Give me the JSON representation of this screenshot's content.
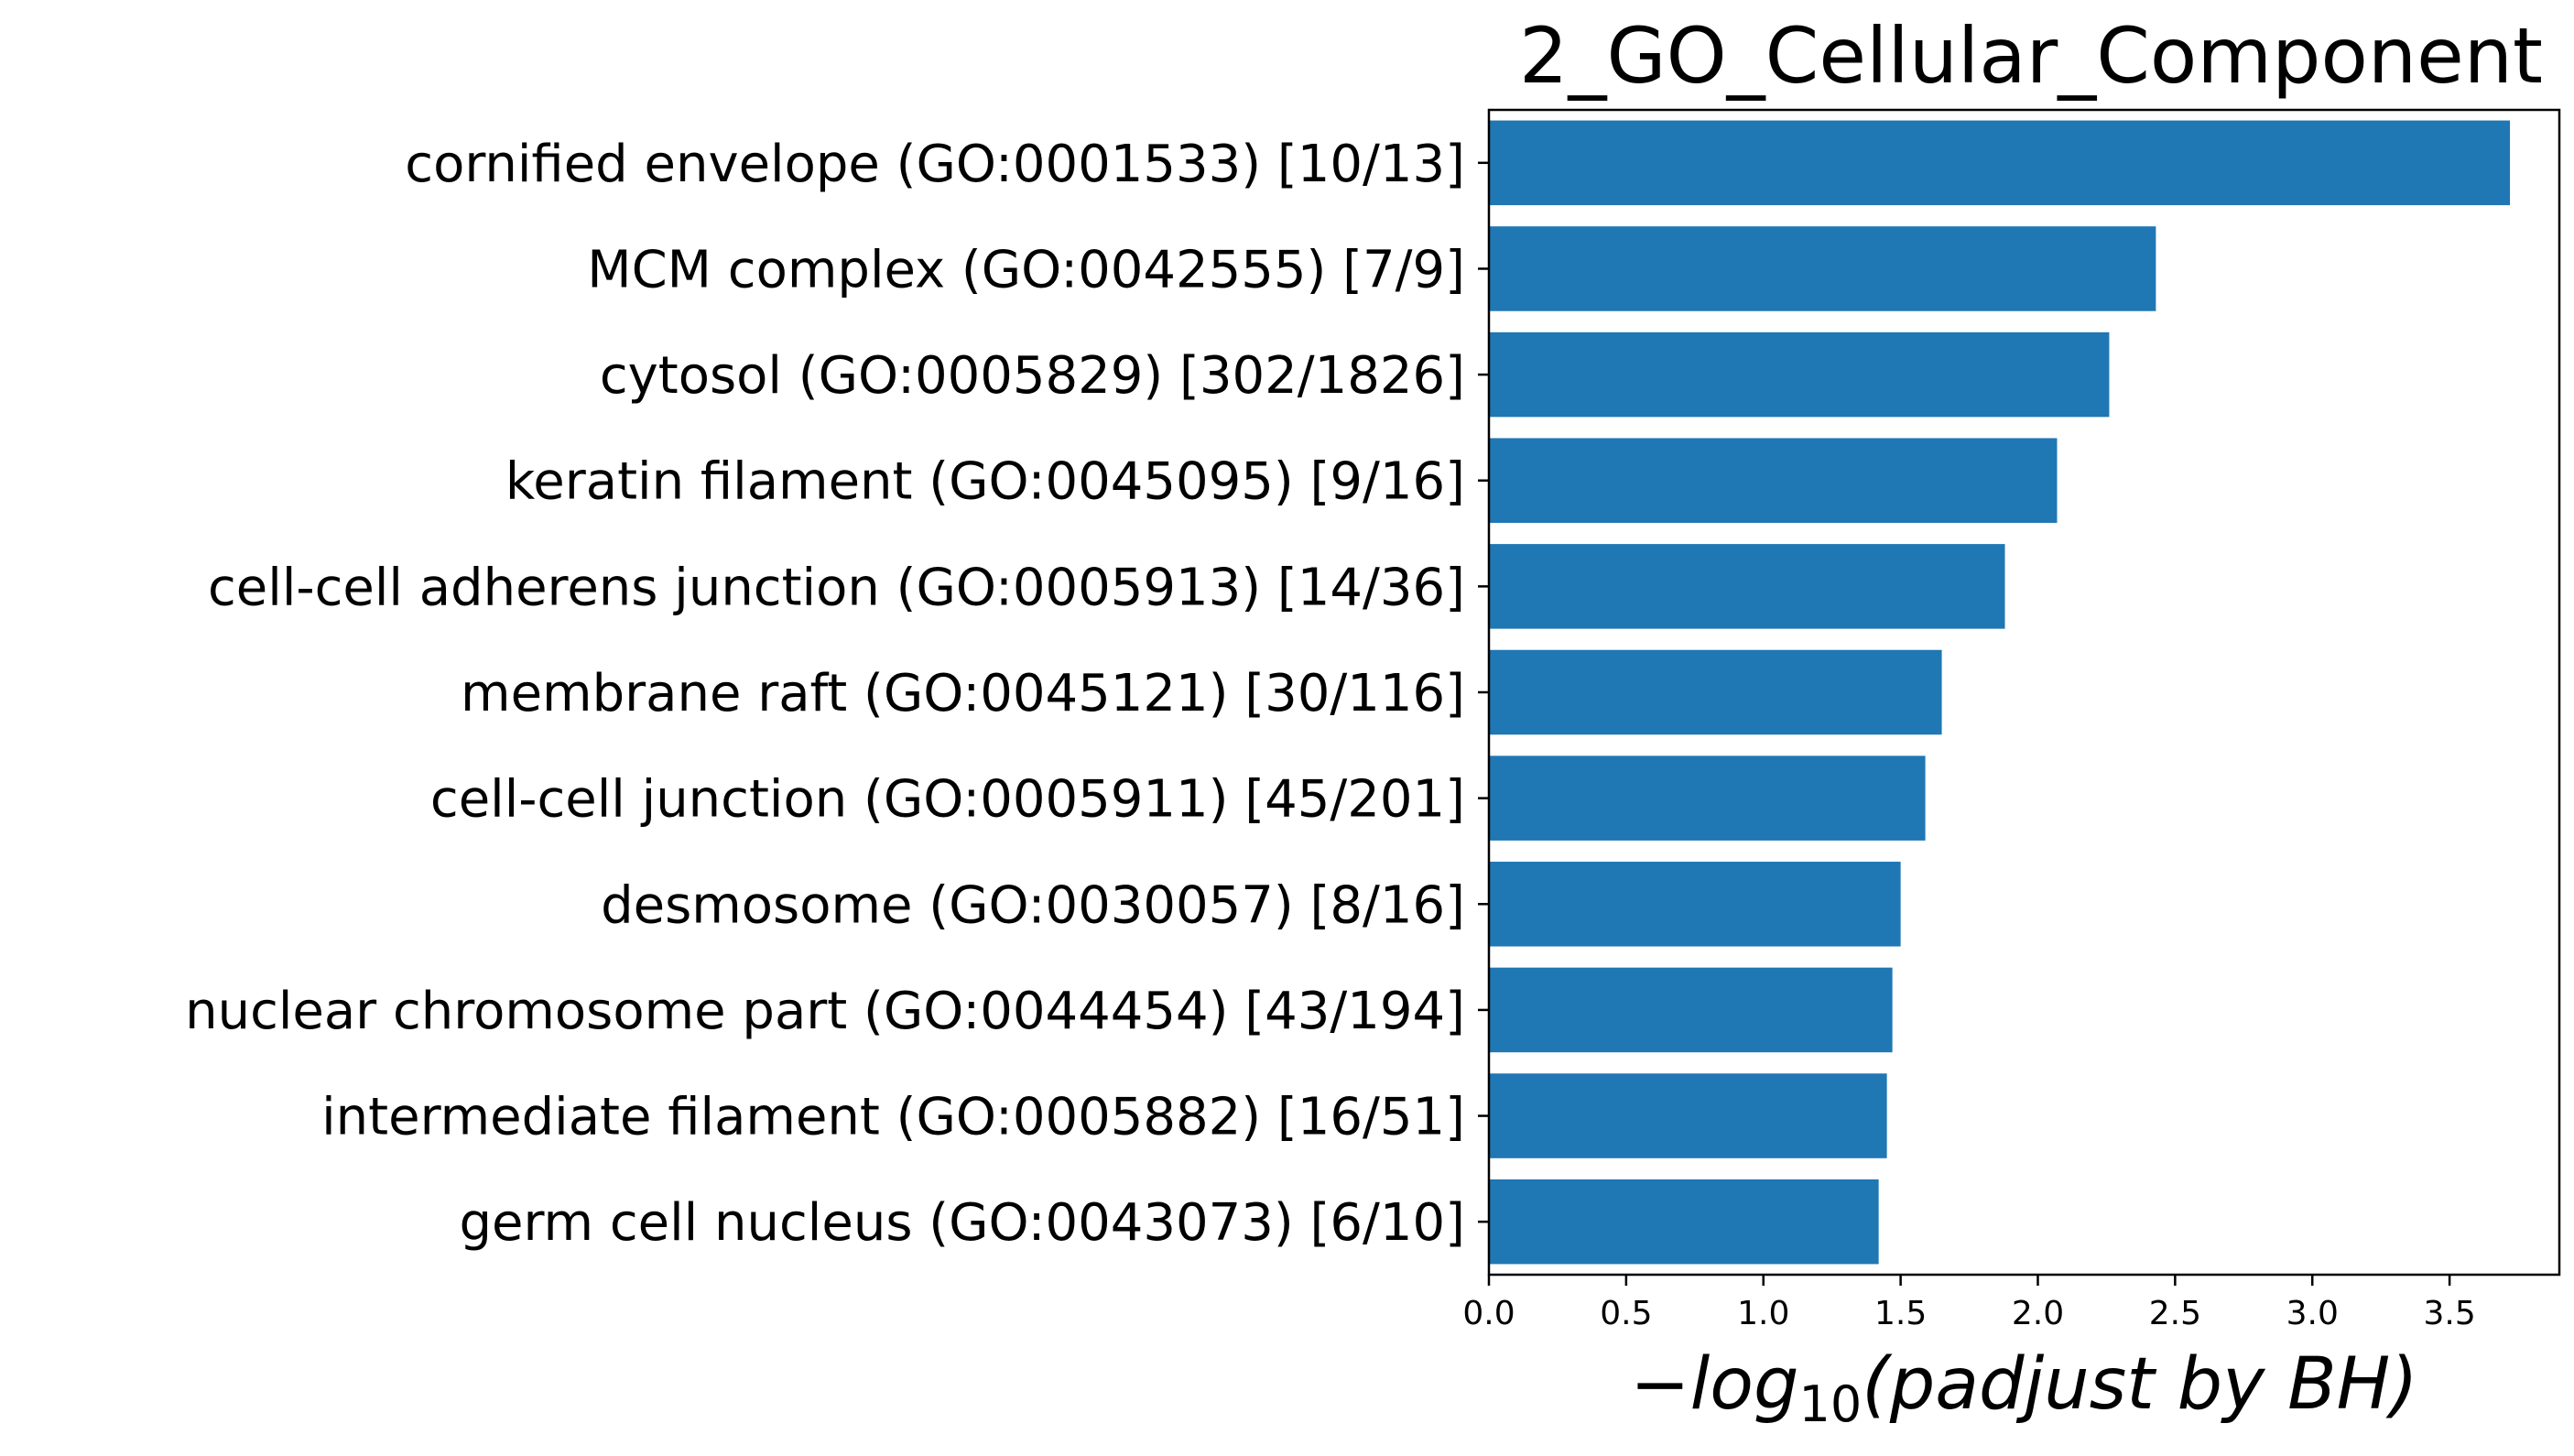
{
  "chart_data": {
    "type": "bar",
    "orientation": "horizontal",
    "title": "2_GO_Cellular_Component",
    "xlabel_main": "−log",
    "xlabel_sub": "10",
    "xlabel_rest": "(padjust by BH)",
    "xlim": [
      0,
      3.9
    ],
    "xticks": [
      "0.0",
      "0.5",
      "1.0",
      "1.5",
      "2.0",
      "2.5",
      "3.0",
      "3.5"
    ],
    "grid": false,
    "bar_color": "#1f77b4",
    "categories": [
      "cornified envelope (GO:0001533) [10/13]",
      "MCM complex (GO:0042555) [7/9]",
      "cytosol (GO:0005829) [302/1826]",
      "keratin filament (GO:0045095) [9/16]",
      "cell-cell adherens junction (GO:0005913) [14/36]",
      "membrane raft (GO:0045121) [30/116]",
      "cell-cell junction (GO:0005911) [45/201]",
      "desmosome (GO:0030057) [8/16]",
      "nuclear chromosome part (GO:0044454) [43/194]",
      "intermediate filament (GO:0005882) [16/51]",
      "germ cell nucleus (GO:0043073) [6/10]"
    ],
    "values": [
      3.72,
      2.43,
      2.26,
      2.07,
      1.88,
      1.65,
      1.59,
      1.5,
      1.47,
      1.45,
      1.42
    ]
  }
}
